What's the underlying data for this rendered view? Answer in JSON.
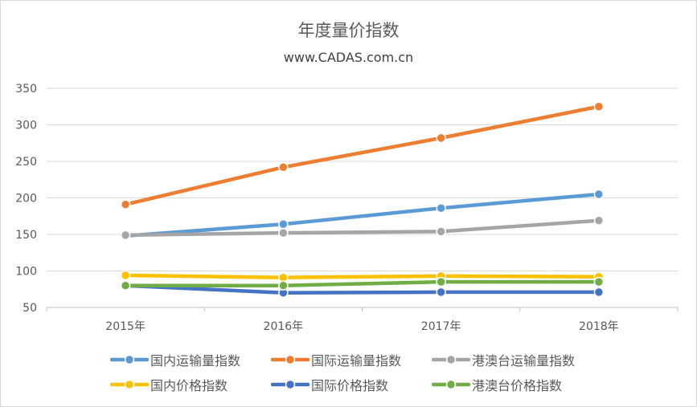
{
  "chart_data": {
    "type": "line",
    "title": "年度量价指数",
    "subtitle": "www.CADAS.com.cn",
    "categories": [
      "2015年",
      "2016年",
      "2017年",
      "2018年"
    ],
    "ylim": [
      50,
      350
    ],
    "yticks": [
      50,
      100,
      150,
      200,
      250,
      300,
      350
    ],
    "grid": true,
    "legend_position": "bottom",
    "series": [
      {
        "name": "国内运输量指数",
        "color": "#5b9bd5",
        "values": [
          148,
          164,
          186,
          205
        ]
      },
      {
        "name": "国际运输量指数",
        "color": "#ed7d31",
        "values": [
          191,
          242,
          282,
          325
        ]
      },
      {
        "name": "港澳台运输量指数",
        "color": "#a5a5a5",
        "values": [
          149,
          152,
          154,
          169
        ]
      },
      {
        "name": "国内价格指数",
        "color": "#ffc000",
        "values": [
          94,
          91,
          93,
          92
        ]
      },
      {
        "name": "国际价格指数",
        "color": "#4472c4",
        "values": [
          80,
          70,
          71,
          71
        ]
      },
      {
        "name": "港澳台价格指数",
        "color": "#70ad47",
        "values": [
          80,
          80,
          85,
          85
        ]
      }
    ]
  }
}
